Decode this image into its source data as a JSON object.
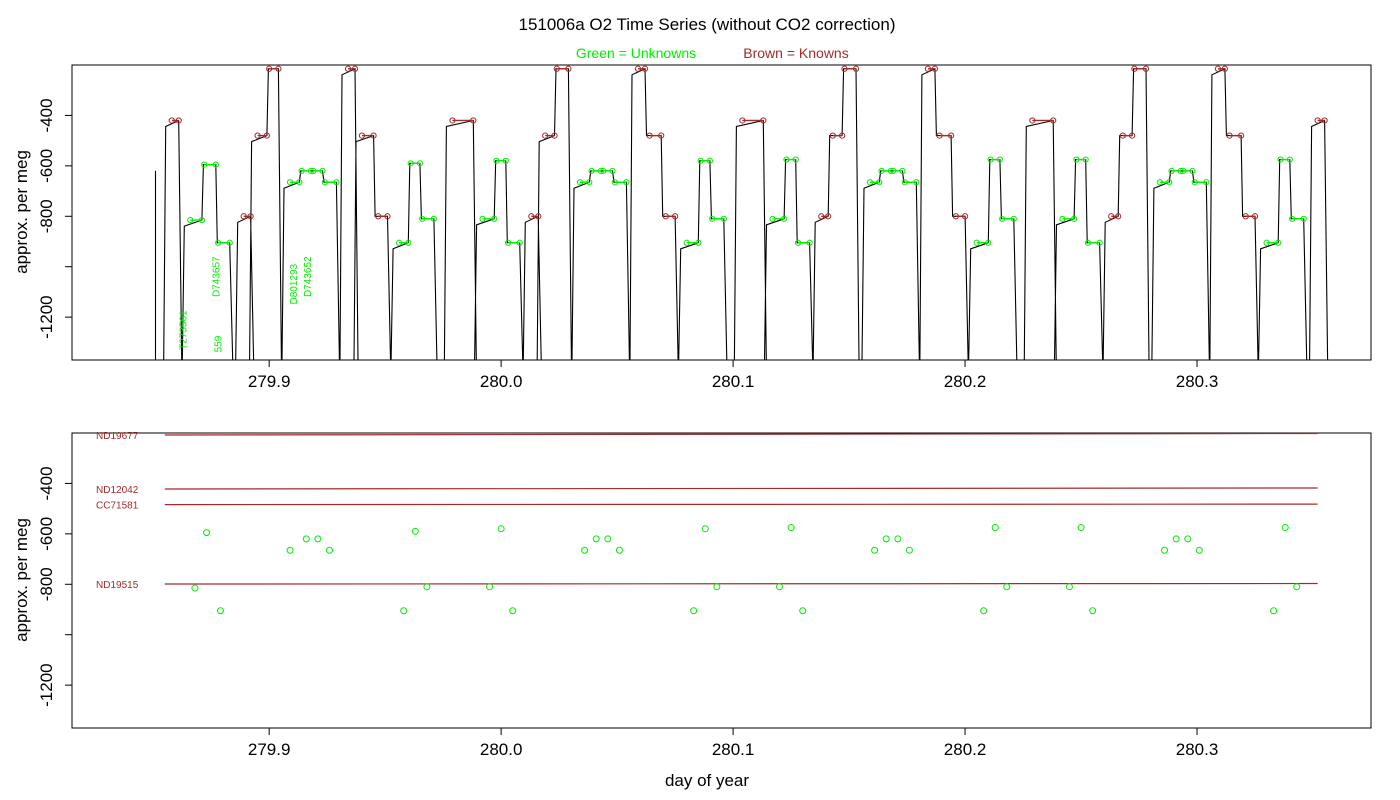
{
  "title": "151006a   O2 Time Series (without CO2 correction)",
  "legend": {
    "unknowns": "Green = Unknowns",
    "knowns": "Brown = Knowns"
  },
  "colors": {
    "unknown": "#00ee00",
    "known": "#a52a2a",
    "trace": "#000000"
  },
  "chart_data": [
    {
      "type": "line",
      "panel": "top",
      "ylabel": "approx. per meg",
      "xlim": [
        279.815,
        280.375
      ],
      "ylim": [
        -1370,
        -200
      ],
      "yreversed": true,
      "xticks": [
        279.9,
        280.0,
        280.1,
        280.2,
        280.3
      ],
      "xtick_labels": [
        "279.9",
        "280.0",
        "280.1",
        "280.2",
        "280.3"
      ],
      "yticks": [
        -400,
        -600,
        -800,
        -1000,
        -1200
      ],
      "ytick_labels": [
        "-400",
        "-600",
        "-800",
        "",
        "-1200"
      ],
      "trace_start": 279.851,
      "trace_end": 280.355,
      "levels": [
        {
          "x0": 279.858,
          "x1": 279.861,
          "y": -420,
          "kind": "known"
        },
        {
          "x0": 279.866,
          "x1": 279.871,
          "y": -815,
          "kind": "unknown"
        },
        {
          "x0": 279.872,
          "x1": 279.877,
          "y": -595,
          "kind": "unknown"
        },
        {
          "x0": 279.878,
          "x1": 279.883,
          "y": -905,
          "kind": "unknown"
        },
        {
          "x0": 279.889,
          "x1": 279.892,
          "y": -800,
          "kind": "known"
        },
        {
          "x0": 279.895,
          "x1": 279.899,
          "y": -480,
          "kind": "known"
        },
        {
          "x0": 279.9,
          "x1": 279.904,
          "y": -215,
          "kind": "known"
        },
        {
          "x0": 279.909,
          "x1": 279.913,
          "y": -665,
          "kind": "unknown"
        },
        {
          "x0": 279.914,
          "x1": 279.918,
          "y": -620,
          "kind": "unknown"
        },
        {
          "x0": 279.919,
          "x1": 279.923,
          "y": -620,
          "kind": "unknown"
        },
        {
          "x0": 279.924,
          "x1": 279.929,
          "y": -665,
          "kind": "unknown"
        },
        {
          "x0": 279.934,
          "x1": 279.937,
          "y": -215,
          "kind": "known"
        },
        {
          "x0": 279.94,
          "x1": 279.945,
          "y": -480,
          "kind": "known"
        },
        {
          "x0": 279.947,
          "x1": 279.951,
          "y": -800,
          "kind": "known"
        },
        {
          "x0": 279.956,
          "x1": 279.96,
          "y": -905,
          "kind": "unknown"
        },
        {
          "x0": 279.961,
          "x1": 279.965,
          "y": -590,
          "kind": "unknown"
        },
        {
          "x0": 279.966,
          "x1": 279.971,
          "y": -810,
          "kind": "unknown"
        },
        {
          "x0": 279.979,
          "x1": 279.988,
          "y": -420,
          "kind": "known"
        },
        {
          "x0": 279.992,
          "x1": 279.997,
          "y": -810,
          "kind": "unknown"
        },
        {
          "x0": 279.998,
          "x1": 280.002,
          "y": -580,
          "kind": "unknown"
        },
        {
          "x0": 280.003,
          "x1": 280.008,
          "y": -905,
          "kind": "unknown"
        },
        {
          "x0": 280.013,
          "x1": 280.016,
          "y": -800,
          "kind": "known"
        },
        {
          "x0": 280.019,
          "x1": 280.023,
          "y": -480,
          "kind": "known"
        },
        {
          "x0": 280.024,
          "x1": 280.029,
          "y": -215,
          "kind": "known"
        },
        {
          "x0": 280.034,
          "x1": 280.038,
          "y": -665,
          "kind": "unknown"
        },
        {
          "x0": 280.039,
          "x1": 280.043,
          "y": -620,
          "kind": "unknown"
        },
        {
          "x0": 280.044,
          "x1": 280.048,
          "y": -620,
          "kind": "unknown"
        },
        {
          "x0": 280.049,
          "x1": 280.054,
          "y": -665,
          "kind": "unknown"
        },
        {
          "x0": 280.059,
          "x1": 280.062,
          "y": -215,
          "kind": "known"
        },
        {
          "x0": 280.064,
          "x1": 280.069,
          "y": -480,
          "kind": "known"
        },
        {
          "x0": 280.071,
          "x1": 280.075,
          "y": -800,
          "kind": "known"
        },
        {
          "x0": 280.08,
          "x1": 280.085,
          "y": -905,
          "kind": "unknown"
        },
        {
          "x0": 280.086,
          "x1": 280.09,
          "y": -580,
          "kind": "unknown"
        },
        {
          "x0": 280.091,
          "x1": 280.096,
          "y": -810,
          "kind": "unknown"
        },
        {
          "x0": 280.104,
          "x1": 280.113,
          "y": -420,
          "kind": "known"
        },
        {
          "x0": 280.117,
          "x1": 280.122,
          "y": -810,
          "kind": "unknown"
        },
        {
          "x0": 280.123,
          "x1": 280.127,
          "y": -575,
          "kind": "unknown"
        },
        {
          "x0": 280.128,
          "x1": 280.133,
          "y": -905,
          "kind": "unknown"
        },
        {
          "x0": 280.138,
          "x1": 280.141,
          "y": -800,
          "kind": "known"
        },
        {
          "x0": 280.143,
          "x1": 280.147,
          "y": -480,
          "kind": "known"
        },
        {
          "x0": 280.148,
          "x1": 280.153,
          "y": -215,
          "kind": "known"
        },
        {
          "x0": 280.159,
          "x1": 280.163,
          "y": -665,
          "kind": "unknown"
        },
        {
          "x0": 280.164,
          "x1": 280.168,
          "y": -620,
          "kind": "unknown"
        },
        {
          "x0": 280.169,
          "x1": 280.173,
          "y": -620,
          "kind": "unknown"
        },
        {
          "x0": 280.174,
          "x1": 280.179,
          "y": -665,
          "kind": "unknown"
        },
        {
          "x0": 280.184,
          "x1": 280.187,
          "y": -215,
          "kind": "known"
        },
        {
          "x0": 280.189,
          "x1": 280.194,
          "y": -480,
          "kind": "known"
        },
        {
          "x0": 280.196,
          "x1": 280.2,
          "y": -800,
          "kind": "known"
        },
        {
          "x0": 280.205,
          "x1": 280.21,
          "y": -905,
          "kind": "unknown"
        },
        {
          "x0": 280.211,
          "x1": 280.215,
          "y": -575,
          "kind": "unknown"
        },
        {
          "x0": 280.216,
          "x1": 280.221,
          "y": -810,
          "kind": "unknown"
        },
        {
          "x0": 280.229,
          "x1": 280.238,
          "y": -420,
          "kind": "known"
        },
        {
          "x0": 280.242,
          "x1": 280.247,
          "y": -810,
          "kind": "unknown"
        },
        {
          "x0": 280.248,
          "x1": 280.252,
          "y": -575,
          "kind": "unknown"
        },
        {
          "x0": 280.253,
          "x1": 280.258,
          "y": -905,
          "kind": "unknown"
        },
        {
          "x0": 280.263,
          "x1": 280.266,
          "y": -800,
          "kind": "known"
        },
        {
          "x0": 280.268,
          "x1": 280.272,
          "y": -480,
          "kind": "known"
        },
        {
          "x0": 280.273,
          "x1": 280.278,
          "y": -215,
          "kind": "known"
        },
        {
          "x0": 280.284,
          "x1": 280.288,
          "y": -665,
          "kind": "unknown"
        },
        {
          "x0": 280.289,
          "x1": 280.293,
          "y": -620,
          "kind": "unknown"
        },
        {
          "x0": 280.294,
          "x1": 280.298,
          "y": -620,
          "kind": "unknown"
        },
        {
          "x0": 280.299,
          "x1": 280.304,
          "y": -665,
          "kind": "unknown"
        },
        {
          "x0": 280.309,
          "x1": 280.312,
          "y": -215,
          "kind": "known"
        },
        {
          "x0": 280.314,
          "x1": 280.319,
          "y": -480,
          "kind": "known"
        },
        {
          "x0": 280.321,
          "x1": 280.325,
          "y": -800,
          "kind": "known"
        },
        {
          "x0": 280.33,
          "x1": 280.335,
          "y": -905,
          "kind": "unknown"
        },
        {
          "x0": 280.336,
          "x1": 280.34,
          "y": -575,
          "kind": "unknown"
        },
        {
          "x0": 280.341,
          "x1": 280.346,
          "y": -810,
          "kind": "unknown"
        },
        {
          "x0": 280.352,
          "x1": 280.355,
          "y": -420,
          "kind": "known"
        }
      ],
      "annotations": [
        {
          "text": "D743657",
          "x": 279.8785,
          "y": -1120
        },
        {
          "text": "D801293",
          "x": 279.9121,
          "y": -1150
        },
        {
          "text": "D743652",
          "x": 279.918,
          "y": -1120
        },
        {
          "text": "T273561",
          "x": 279.8643,
          "y": -1330
        },
        {
          "text": "559",
          "x": 279.8795,
          "y": -1340
        }
      ]
    },
    {
      "type": "scatter",
      "panel": "bottom",
      "xlabel": "day of year",
      "ylabel": "approx. per meg",
      "xlim": [
        279.815,
        280.375
      ],
      "ylim": [
        -1370,
        -200
      ],
      "yreversed": true,
      "xticks": [
        279.9,
        280.0,
        280.1,
        280.2,
        280.3
      ],
      "xtick_labels": [
        "279.9",
        "280.0",
        "280.1",
        "280.2",
        "280.3"
      ],
      "yticks": [
        -400,
        -600,
        -800,
        -1000,
        -1200
      ],
      "ytick_labels": [
        "-400",
        "-600",
        "-800",
        "",
        "-1200"
      ],
      "reference_lines": [
        {
          "name": "ND19677",
          "x0": 279.855,
          "x1": 280.352,
          "y0": -208,
          "y1": -202
        },
        {
          "name": "ND12042",
          "x0": 279.855,
          "x1": 280.352,
          "y0": -422,
          "y1": -418
        },
        {
          "name": "CC71581",
          "x0": 279.855,
          "x1": 280.352,
          "y0": -484,
          "y1": -482
        },
        {
          "name": "ND19515",
          "x0": 279.855,
          "x1": 280.352,
          "y0": -799,
          "y1": -797
        }
      ],
      "x": [
        279.868,
        279.873,
        279.879,
        279.909,
        279.916,
        279.921,
        279.926,
        279.958,
        279.963,
        279.968,
        279.995,
        280.0,
        280.005,
        280.036,
        280.041,
        280.046,
        280.051,
        280.083,
        280.088,
        280.093,
        280.12,
        280.125,
        280.13,
        280.161,
        280.166,
        280.171,
        280.176,
        280.208,
        280.213,
        280.218,
        280.245,
        280.25,
        280.255,
        280.286,
        280.291,
        280.296,
        280.301,
        280.333,
        280.338,
        280.343
      ],
      "y": [
        -815,
        -595,
        -905,
        -665,
        -620,
        -620,
        -665,
        -905,
        -590,
        -810,
        -810,
        -580,
        -905,
        -665,
        -620,
        -620,
        -665,
        -905,
        -580,
        -810,
        -810,
        -575,
        -905,
        -665,
        -620,
        -620,
        -665,
        -905,
        -575,
        -810,
        -810,
        -575,
        -905,
        -665,
        -620,
        -620,
        -665,
        -905,
        -575,
        -810
      ]
    }
  ]
}
